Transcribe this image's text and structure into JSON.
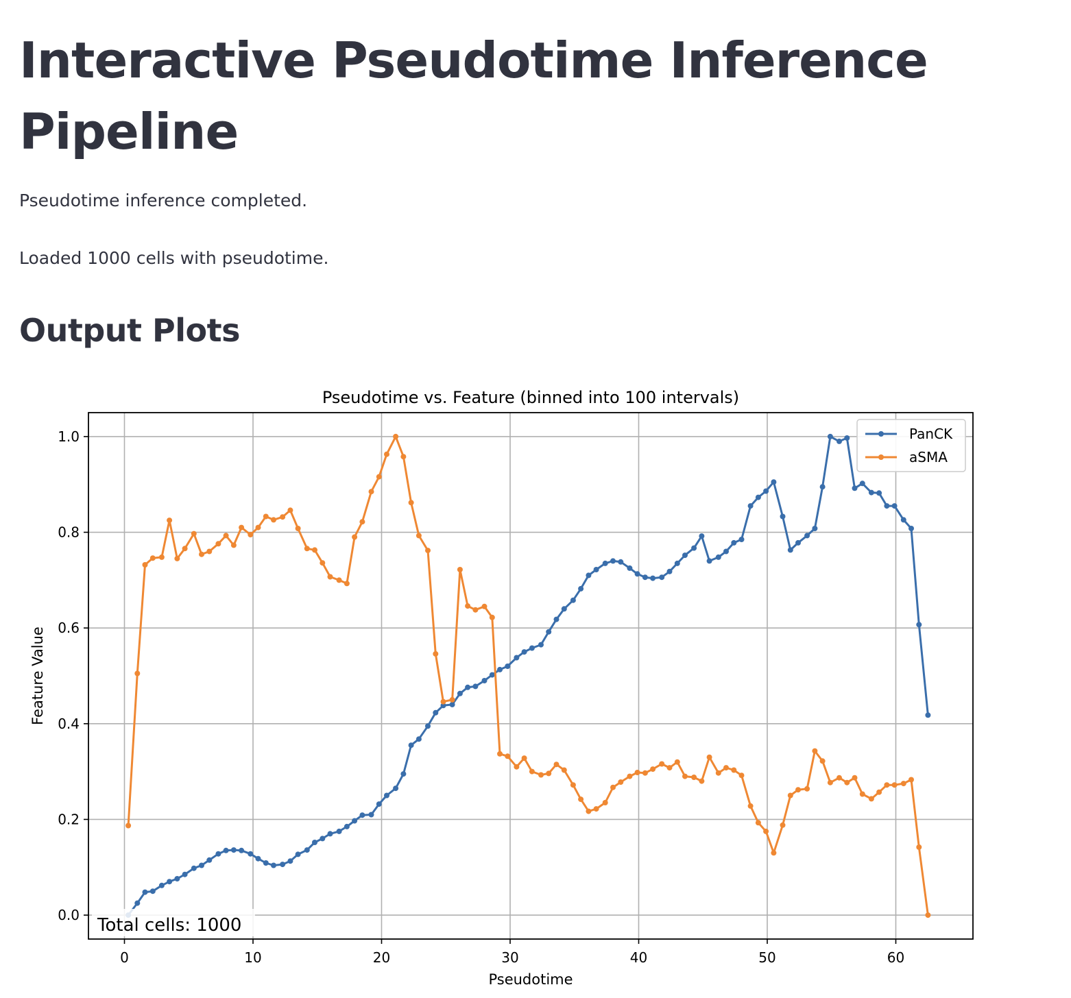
{
  "page": {
    "title": "Interactive Pseudotime Inference Pipeline",
    "status_message": "Pseudotime inference completed.",
    "loaded_message": "Loaded 1000 cells with pseudotime.",
    "section_title": "Output Plots"
  },
  "chart_data": {
    "type": "line",
    "title": "Pseudotime vs. Feature (binned into 100 intervals)",
    "xlabel": "Pseudotime",
    "ylabel": "Feature Value",
    "xlim": [
      -2.8,
      66
    ],
    "ylim": [
      -0.05,
      1.05
    ],
    "xticks": [
      0,
      10,
      20,
      30,
      40,
      50,
      60
    ],
    "yticks": [
      "0.0",
      "0.2",
      "0.4",
      "0.6",
      "0.8",
      "1.0"
    ],
    "grid": true,
    "legend_position": "top-right",
    "annotation": "Total cells: 1000",
    "series": [
      {
        "name": "PanCK",
        "color": "#3a6eab",
        "points": [
          [
            0.3,
            0.0
          ],
          [
            1.0,
            0.025
          ],
          [
            1.6,
            0.048
          ],
          [
            2.2,
            0.05
          ],
          [
            2.9,
            0.062
          ],
          [
            3.5,
            0.07
          ],
          [
            4.1,
            0.076
          ],
          [
            4.7,
            0.085
          ],
          [
            5.4,
            0.098
          ],
          [
            6.0,
            0.104
          ],
          [
            6.6,
            0.115
          ],
          [
            7.3,
            0.128
          ],
          [
            7.9,
            0.135
          ],
          [
            8.5,
            0.136
          ],
          [
            9.1,
            0.135
          ],
          [
            9.8,
            0.128
          ],
          [
            10.4,
            0.118
          ],
          [
            11.0,
            0.109
          ],
          [
            11.6,
            0.104
          ],
          [
            12.3,
            0.106
          ],
          [
            12.9,
            0.113
          ],
          [
            13.5,
            0.127
          ],
          [
            14.2,
            0.136
          ],
          [
            14.8,
            0.152
          ],
          [
            15.4,
            0.16
          ],
          [
            16.0,
            0.17
          ],
          [
            16.7,
            0.175
          ],
          [
            17.3,
            0.185
          ],
          [
            17.9,
            0.197
          ],
          [
            18.5,
            0.209
          ],
          [
            19.2,
            0.21
          ],
          [
            19.8,
            0.232
          ],
          [
            20.4,
            0.25
          ],
          [
            21.1,
            0.265
          ],
          [
            21.7,
            0.295
          ],
          [
            22.3,
            0.355
          ],
          [
            22.9,
            0.368
          ],
          [
            23.6,
            0.395
          ],
          [
            24.2,
            0.423
          ],
          [
            24.8,
            0.438
          ],
          [
            25.5,
            0.44
          ],
          [
            26.1,
            0.463
          ],
          [
            26.7,
            0.476
          ],
          [
            27.3,
            0.478
          ],
          [
            28.0,
            0.49
          ],
          [
            28.6,
            0.502
          ],
          [
            29.2,
            0.513
          ],
          [
            29.8,
            0.52
          ],
          [
            30.5,
            0.538
          ],
          [
            31.1,
            0.55
          ],
          [
            31.7,
            0.558
          ],
          [
            32.4,
            0.565
          ],
          [
            33.0,
            0.592
          ],
          [
            33.6,
            0.618
          ],
          [
            34.2,
            0.64
          ],
          [
            34.9,
            0.658
          ],
          [
            35.5,
            0.682
          ],
          [
            36.1,
            0.71
          ],
          [
            36.7,
            0.722
          ],
          [
            37.4,
            0.735
          ],
          [
            38.0,
            0.74
          ],
          [
            38.6,
            0.738
          ],
          [
            39.3,
            0.725
          ],
          [
            39.9,
            0.713
          ],
          [
            40.5,
            0.706
          ],
          [
            41.1,
            0.704
          ],
          [
            41.8,
            0.706
          ],
          [
            42.4,
            0.718
          ],
          [
            43.0,
            0.735
          ],
          [
            43.6,
            0.752
          ],
          [
            44.3,
            0.767
          ],
          [
            44.9,
            0.792
          ],
          [
            45.5,
            0.74
          ],
          [
            46.2,
            0.748
          ],
          [
            46.8,
            0.76
          ],
          [
            47.4,
            0.778
          ],
          [
            48.0,
            0.785
          ],
          [
            48.7,
            0.855
          ],
          [
            49.3,
            0.873
          ],
          [
            49.9,
            0.886
          ],
          [
            50.5,
            0.905
          ],
          [
            51.2,
            0.833
          ],
          [
            51.8,
            0.763
          ],
          [
            52.4,
            0.778
          ],
          [
            53.1,
            0.793
          ],
          [
            53.7,
            0.808
          ],
          [
            54.3,
            0.895
          ],
          [
            54.9,
            1.0
          ],
          [
            55.6,
            0.99
          ],
          [
            56.2,
            0.997
          ],
          [
            56.8,
            0.892
          ],
          [
            57.4,
            0.902
          ],
          [
            58.1,
            0.883
          ],
          [
            58.7,
            0.882
          ],
          [
            59.3,
            0.855
          ],
          [
            59.9,
            0.855
          ],
          [
            60.6,
            0.826
          ],
          [
            61.2,
            0.808
          ],
          [
            61.8,
            0.607
          ],
          [
            62.5,
            0.418
          ]
        ]
      },
      {
        "name": "aSMA",
        "color": "#ef8833",
        "points": [
          [
            0.3,
            0.187
          ],
          [
            1.0,
            0.505
          ],
          [
            1.6,
            0.732
          ],
          [
            2.2,
            0.746
          ],
          [
            2.9,
            0.748
          ],
          [
            3.5,
            0.825
          ],
          [
            4.1,
            0.745
          ],
          [
            4.7,
            0.766
          ],
          [
            5.4,
            0.797
          ],
          [
            6.0,
            0.754
          ],
          [
            6.6,
            0.76
          ],
          [
            7.3,
            0.776
          ],
          [
            7.9,
            0.793
          ],
          [
            8.5,
            0.773
          ],
          [
            9.1,
            0.81
          ],
          [
            9.8,
            0.795
          ],
          [
            10.4,
            0.81
          ],
          [
            11.0,
            0.833
          ],
          [
            11.6,
            0.826
          ],
          [
            12.3,
            0.832
          ],
          [
            12.9,
            0.846
          ],
          [
            13.5,
            0.808
          ],
          [
            14.2,
            0.766
          ],
          [
            14.8,
            0.763
          ],
          [
            15.4,
            0.736
          ],
          [
            16.0,
            0.707
          ],
          [
            16.7,
            0.7
          ],
          [
            17.3,
            0.693
          ],
          [
            17.9,
            0.79
          ],
          [
            18.5,
            0.822
          ],
          [
            19.2,
            0.885
          ],
          [
            19.8,
            0.916
          ],
          [
            20.4,
            0.963
          ],
          [
            21.1,
            1.0
          ],
          [
            21.7,
            0.958
          ],
          [
            22.3,
            0.862
          ],
          [
            22.9,
            0.793
          ],
          [
            23.6,
            0.762
          ],
          [
            24.2,
            0.546
          ],
          [
            24.8,
            0.446
          ],
          [
            25.5,
            0.45
          ],
          [
            26.1,
            0.722
          ],
          [
            26.7,
            0.646
          ],
          [
            27.3,
            0.638
          ],
          [
            28.0,
            0.645
          ],
          [
            28.6,
            0.622
          ],
          [
            29.2,
            0.337
          ],
          [
            29.8,
            0.332
          ],
          [
            30.5,
            0.31
          ],
          [
            31.1,
            0.328
          ],
          [
            31.7,
            0.3
          ],
          [
            32.4,
            0.293
          ],
          [
            33.0,
            0.296
          ],
          [
            33.6,
            0.315
          ],
          [
            34.2,
            0.303
          ],
          [
            34.9,
            0.272
          ],
          [
            35.5,
            0.242
          ],
          [
            36.1,
            0.217
          ],
          [
            36.7,
            0.222
          ],
          [
            37.4,
            0.235
          ],
          [
            38.0,
            0.267
          ],
          [
            38.6,
            0.278
          ],
          [
            39.3,
            0.29
          ],
          [
            39.9,
            0.298
          ],
          [
            40.5,
            0.297
          ],
          [
            41.1,
            0.305
          ],
          [
            41.8,
            0.316
          ],
          [
            42.4,
            0.308
          ],
          [
            43.0,
            0.32
          ],
          [
            43.6,
            0.29
          ],
          [
            44.3,
            0.288
          ],
          [
            44.9,
            0.28
          ],
          [
            45.5,
            0.33
          ],
          [
            46.2,
            0.297
          ],
          [
            46.8,
            0.308
          ],
          [
            47.4,
            0.303
          ],
          [
            48.0,
            0.292
          ],
          [
            48.7,
            0.228
          ],
          [
            49.3,
            0.193
          ],
          [
            49.9,
            0.175
          ],
          [
            50.5,
            0.13
          ],
          [
            51.2,
            0.188
          ],
          [
            51.8,
            0.25
          ],
          [
            52.4,
            0.262
          ],
          [
            53.1,
            0.264
          ],
          [
            53.7,
            0.343
          ],
          [
            54.3,
            0.322
          ],
          [
            54.9,
            0.277
          ],
          [
            55.6,
            0.287
          ],
          [
            56.2,
            0.277
          ],
          [
            56.8,
            0.287
          ],
          [
            57.4,
            0.253
          ],
          [
            58.1,
            0.243
          ],
          [
            58.7,
            0.257
          ],
          [
            59.3,
            0.272
          ],
          [
            59.9,
            0.272
          ],
          [
            60.6,
            0.275
          ],
          [
            61.2,
            0.283
          ],
          [
            61.8,
            0.142
          ],
          [
            62.5,
            0.0
          ]
        ]
      }
    ]
  }
}
